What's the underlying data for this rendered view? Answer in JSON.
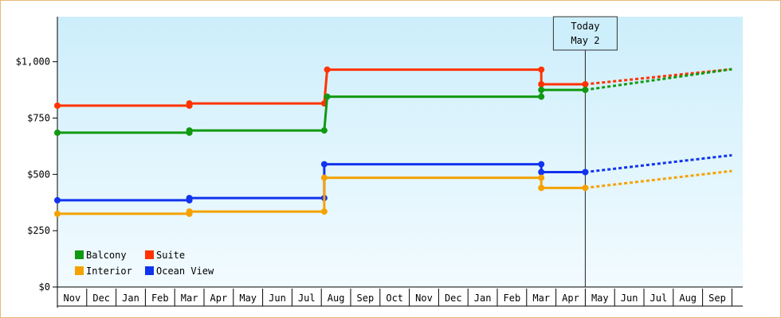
{
  "chart_data": {
    "type": "line",
    "style": "step",
    "x_axis": {
      "months": [
        "Nov",
        "Dec",
        "Jan",
        "Feb",
        "Mar",
        "Apr",
        "May",
        "Jun",
        "Jul",
        "Aug",
        "Sep",
        "Oct",
        "Nov",
        "Dec",
        "Jan",
        "Feb",
        "Mar",
        "Apr",
        "May",
        "Jun",
        "Jul",
        "Aug",
        "Sep"
      ],
      "start_month": "Nov"
    },
    "y_axis": {
      "ylim": [
        0,
        1200
      ],
      "ticks": [
        0,
        250,
        500,
        750,
        1000
      ],
      "tick_labels": [
        "$0",
        "$250",
        "$500",
        "$750",
        "$1,000"
      ]
    },
    "today_marker": {
      "line1": "Today",
      "line2": "May 2",
      "x": 18.0
    },
    "grid": false,
    "background_gradient": [
      "#cdeefb",
      "#f2fbff"
    ],
    "legend": {
      "placement": "bottom-left",
      "entries": [
        {
          "label": "Balcony",
          "color": "#119911"
        },
        {
          "label": "Suite",
          "color": "#ff3300"
        },
        {
          "label": "Interior",
          "color": "#f5a200"
        },
        {
          "label": "Ocean View",
          "color": "#1133ee"
        }
      ]
    },
    "series": [
      {
        "name": "Suite",
        "color": "#ff3300",
        "points": [
          [
            0,
            805
          ],
          [
            4.5,
            805
          ],
          [
            4.5,
            815
          ],
          [
            9.1,
            815
          ],
          [
            9.2,
            965
          ],
          [
            16.5,
            965
          ],
          [
            16.5,
            900
          ],
          [
            18.0,
            900
          ]
        ],
        "markers": [
          [
            0,
            805
          ],
          [
            4.5,
            805
          ],
          [
            4.5,
            815
          ],
          [
            9.1,
            815
          ],
          [
            9.2,
            965
          ],
          [
            16.5,
            965
          ],
          [
            16.5,
            900
          ],
          [
            18.0,
            900
          ]
        ],
        "forecast": [
          [
            18.0,
            900
          ],
          [
            23.0,
            967
          ]
        ]
      },
      {
        "name": "Balcony",
        "color": "#119911",
        "points": [
          [
            0,
            685
          ],
          [
            4.5,
            685
          ],
          [
            4.5,
            695
          ],
          [
            9.1,
            695
          ],
          [
            9.2,
            845
          ],
          [
            16.5,
            845
          ],
          [
            16.5,
            875
          ],
          [
            18.0,
            875
          ]
        ],
        "markers": [
          [
            0,
            685
          ],
          [
            4.5,
            685
          ],
          [
            4.5,
            695
          ],
          [
            9.1,
            695
          ],
          [
            9.2,
            845
          ],
          [
            16.5,
            845
          ],
          [
            16.5,
            875
          ],
          [
            18.0,
            875
          ]
        ],
        "forecast": [
          [
            18.0,
            875
          ],
          [
            23.0,
            967
          ]
        ]
      },
      {
        "name": "Ocean View",
        "color": "#1133ee",
        "points": [
          [
            0,
            385
          ],
          [
            4.5,
            385
          ],
          [
            4.5,
            395
          ],
          [
            9.1,
            395
          ],
          [
            9.1,
            545
          ],
          [
            16.5,
            545
          ],
          [
            16.5,
            510
          ],
          [
            18.0,
            510
          ]
        ],
        "markers": [
          [
            0,
            385
          ],
          [
            4.5,
            385
          ],
          [
            4.5,
            395
          ],
          [
            9.1,
            395
          ],
          [
            9.1,
            545
          ],
          [
            16.5,
            545
          ],
          [
            16.5,
            510
          ],
          [
            18.0,
            510
          ]
        ],
        "forecast": [
          [
            18.0,
            510
          ],
          [
            23.0,
            585
          ]
        ]
      },
      {
        "name": "Interior",
        "color": "#f5a200",
        "points": [
          [
            0,
            325
          ],
          [
            4.5,
            325
          ],
          [
            4.5,
            335
          ],
          [
            9.1,
            335
          ],
          [
            9.1,
            485
          ],
          [
            16.5,
            485
          ],
          [
            16.5,
            440
          ],
          [
            18.0,
            440
          ]
        ],
        "markers": [
          [
            0,
            325
          ],
          [
            4.5,
            325
          ],
          [
            4.5,
            335
          ],
          [
            9.1,
            335
          ],
          [
            9.1,
            485
          ],
          [
            16.5,
            485
          ],
          [
            16.5,
            440
          ],
          [
            18.0,
            440
          ]
        ],
        "forecast": [
          [
            18.0,
            440
          ],
          [
            23.0,
            515
          ]
        ]
      }
    ]
  }
}
